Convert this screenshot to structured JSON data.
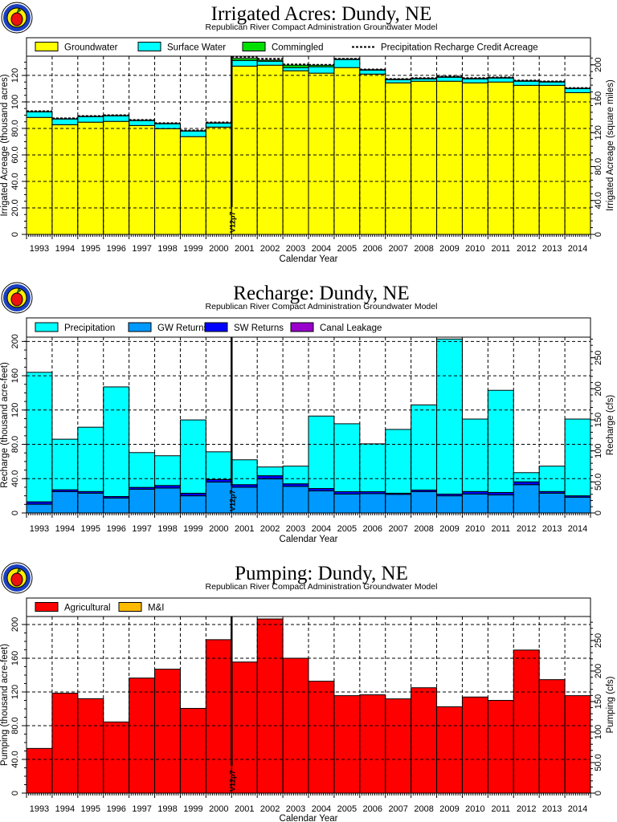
{
  "colors": {
    "groundwater": "#ffff00",
    "surface_water": "#00ffff",
    "commingled": "#00e000",
    "precipitation": "#00ffff",
    "gw_returns": "#0099ff",
    "sw_returns": "#0000ff",
    "canal_leakage": "#9900cc",
    "agricultural": "#ff0000",
    "mi": "#ffbb00"
  },
  "logo_icon": "apple-seal-icon",
  "chart_data": [
    {
      "type": "bar",
      "stacked": true,
      "title": "Irrigated Acres: Dundy, NE",
      "subtitle": "Republican River Compact Administration Groundwater Model",
      "xlabel": "Calendar Year",
      "ylabel": "Irrigated Acreage (thousand acres)",
      "y2label": "Irrigated Acreage (square miles)",
      "ylim": [
        0,
        134.5
      ],
      "yticks": [
        "0",
        "20.0",
        "40.0",
        "60.0",
        "80.0",
        "100",
        "120"
      ],
      "ytick_values": [
        0,
        20,
        40,
        60,
        80,
        100,
        120
      ],
      "y2ticks": [
        "0",
        "40.0",
        "80.0",
        "120",
        "160",
        "200"
      ],
      "y2tick_values": [
        0,
        40,
        80,
        120,
        160,
        200
      ],
      "y2_factor": 0.64,
      "grid": true,
      "annotation": "V12p7",
      "annotation_after": "2000",
      "categories": [
        "1993",
        "1994",
        "1995",
        "1996",
        "1997",
        "1998",
        "1999",
        "2000",
        "2001",
        "2002",
        "2003",
        "2004",
        "2005",
        "2006",
        "2007",
        "2008",
        "2009",
        "2010",
        "2011",
        "2012",
        "2013",
        "2014"
      ],
      "series": [
        {
          "name": "Groundwater",
          "color": "#ffff00",
          "values": [
            88.3,
            82.8,
            84.7,
            85.3,
            82.2,
            79.8,
            73.8,
            81.0,
            127.0,
            127.7,
            123.5,
            121.7,
            125.9,
            121.0,
            114.4,
            115.6,
            115.6,
            114.4,
            115.0,
            112.5,
            112.5,
            107.0
          ]
        },
        {
          "name": "Surface Water",
          "color": "#00ffff",
          "values": [
            4.2,
            4.3,
            4.2,
            4.2,
            3.7,
            3.7,
            4.2,
            3.0,
            4.3,
            3.0,
            2.4,
            4.8,
            6.1,
            3.0,
            2.4,
            1.8,
            3.0,
            3.0,
            3.0,
            3.1,
            2.5,
            3.0
          ]
        },
        {
          "name": "Commingled",
          "color": "#00e000",
          "values": [
            0.2,
            0.2,
            0.2,
            0.2,
            0.2,
            0.2,
            0.2,
            0.2,
            1.5,
            0.8,
            1.8,
            1.2,
            0.3,
            0.3,
            0.3,
            0.3,
            0.3,
            0.3,
            0.3,
            0.3,
            0.3,
            0.3
          ]
        }
      ],
      "line_series": {
        "name": "Precipitation Recharge Credit Acreage",
        "values": [
          93.0,
          87.6,
          89.4,
          90.0,
          86.4,
          84.0,
          78.5,
          84.5,
          134.0,
          132.5,
          128.3,
          128.0,
          132.5,
          124.5,
          117.3,
          118.0,
          119.2,
          118.0,
          118.5,
          116.2,
          115.5,
          110.5
        ]
      }
    },
    {
      "type": "bar",
      "stacked": true,
      "title": "Recharge: Dundy, NE",
      "subtitle": "Republican River Compact Administration Groundwater Model",
      "xlabel": "Calendar Year",
      "ylabel": "Recharge (thousand acre-feet)",
      "y2label": "Recharge (cfs)",
      "ylim": [
        0,
        205
      ],
      "yticks": [
        "0",
        "40.0",
        "80.0",
        "120",
        "160",
        "200"
      ],
      "ytick_values": [
        0,
        40,
        80,
        120,
        160,
        200
      ],
      "y2ticks": [
        "0",
        "50.0",
        "100",
        "150",
        "200",
        "250"
      ],
      "y2tick_values": [
        0,
        50,
        100,
        150,
        200,
        250
      ],
      "y2_factor": 0.724,
      "grid": true,
      "annotation": "V12p7",
      "annotation_after": "2000",
      "categories": [
        "1993",
        "1994",
        "1995",
        "1996",
        "1997",
        "1998",
        "1999",
        "2000",
        "2001",
        "2002",
        "2003",
        "2004",
        "2005",
        "2006",
        "2007",
        "2008",
        "2009",
        "2010",
        "2011",
        "2012",
        "2013",
        "2014"
      ],
      "series": [
        {
          "name": "Precipitation",
          "color": "#00ffff",
          "stack": 3,
          "values": [
            151.0,
            59.0,
            75.0,
            127.8,
            40.6,
            34.7,
            85.5,
            32.3,
            29.0,
            10.2,
            20.6,
            84.5,
            79.2,
            55.8,
            74.4,
            99.3,
            180.8,
            84.5,
            119.1,
            10.7,
            29.6,
            89.5
          ]
        },
        {
          "name": "GW Returns",
          "color": "#0099ff",
          "stack": 0,
          "values": [
            10.2,
            24.8,
            23.0,
            17.4,
            27.6,
            29.0,
            20.0,
            36.0,
            30.0,
            39.7,
            31.0,
            25.7,
            22.0,
            22.6,
            21.7,
            24.8,
            20.0,
            22.0,
            21.0,
            33.0,
            23.0,
            18.3
          ]
        },
        {
          "name": "SW Returns",
          "color": "#0000ff",
          "stack": 1,
          "values": [
            2.8,
            2.2,
            2.0,
            1.8,
            2.2,
            3.0,
            3.0,
            3.0,
            3.0,
            3.7,
            3.0,
            2.8,
            2.8,
            2.2,
            1.3,
            1.9,
            2.0,
            3.0,
            2.9,
            3.3,
            2.0,
            1.7
          ]
        },
        {
          "name": "Canal Leakage",
          "color": "#9900cc",
          "stack": 2,
          "values": [
            0,
            0,
            0,
            0,
            0,
            0,
            0,
            0,
            0,
            0,
            0,
            0,
            0,
            0,
            0,
            0,
            0,
            0,
            0,
            0,
            0,
            0
          ]
        }
      ]
    },
    {
      "type": "bar",
      "stacked": true,
      "title": "Pumping: Dundy, NE",
      "subtitle": "Republican River Compact Administration Groundwater Model",
      "xlabel": "Calendar Year",
      "ylabel": "Pumping (thousand acre-feet)",
      "y2label": "Pumping (cfs)",
      "ylim": [
        0,
        209.5
      ],
      "yticks": [
        "0",
        "40.0",
        "80.0",
        "120",
        "160",
        "200"
      ],
      "ytick_values": [
        0,
        40,
        80,
        120,
        160,
        200
      ],
      "y2ticks": [
        "0",
        "50.0",
        "100",
        "150",
        "200",
        "250"
      ],
      "y2tick_values": [
        0,
        50,
        100,
        150,
        200,
        250
      ],
      "y2_factor": 0.724,
      "grid": true,
      "annotation": "V12p7",
      "annotation_after": "2000",
      "categories": [
        "1993",
        "1994",
        "1995",
        "1996",
        "1997",
        "1998",
        "1999",
        "2000",
        "2001",
        "2002",
        "2003",
        "2004",
        "2005",
        "2006",
        "2007",
        "2008",
        "2009",
        "2010",
        "2011",
        "2012",
        "2013",
        "2014"
      ],
      "series": [
        {
          "name": "Agricultural",
          "color": "#ff0000",
          "values": [
            53.0,
            118.5,
            112.0,
            84.4,
            136.5,
            147.0,
            100.5,
            182.0,
            155.5,
            206.6,
            160.0,
            132.7,
            115.6,
            116.6,
            111.8,
            125.0,
            102.4,
            114.0,
            110.0,
            169.7,
            134.6,
            115.6
          ]
        },
        {
          "name": "M&I",
          "color": "#ffbb00",
          "values": [
            0,
            0,
            0,
            0,
            0,
            0,
            0,
            0,
            0,
            0,
            0,
            0,
            0,
            0,
            0,
            0,
            0,
            0,
            0,
            0,
            0,
            0
          ]
        }
      ]
    }
  ]
}
